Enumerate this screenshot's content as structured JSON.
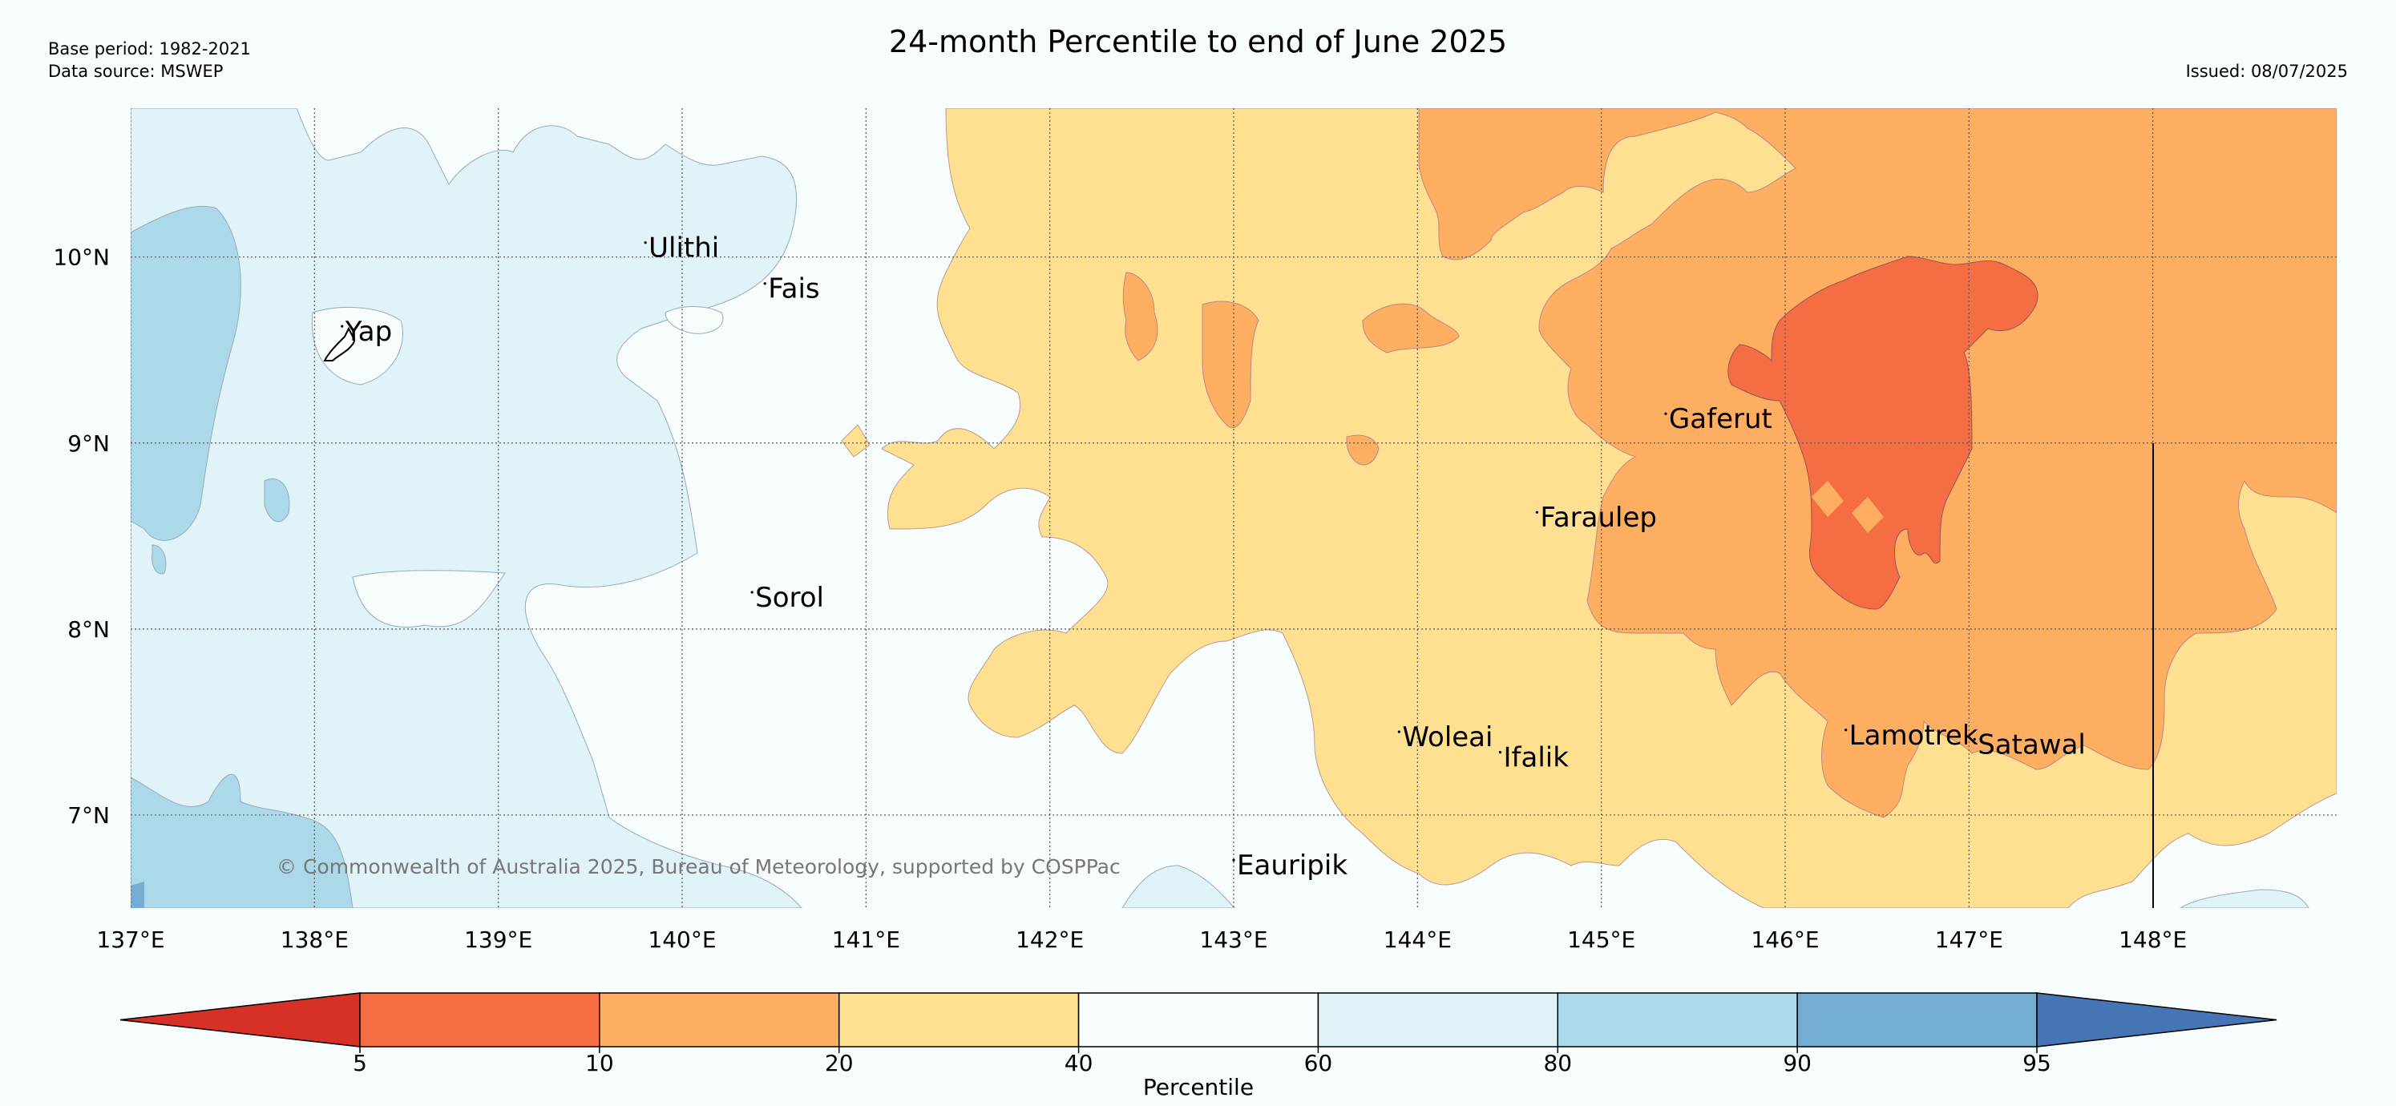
{
  "header": {
    "title": "24-month Percentile to end of June 2025",
    "base_period": "Base period: 1982-2021",
    "data_source": "Data source: MSWEP",
    "issued": "Issued: 08/07/2025"
  },
  "map": {
    "lon_range": [
      137,
      149
    ],
    "lat_range": [
      6.5,
      10.8
    ],
    "x_ticks": [
      {
        "value": 137,
        "label": "137°E"
      },
      {
        "value": 138,
        "label": "138°E"
      },
      {
        "value": 139,
        "label": "139°E"
      },
      {
        "value": 140,
        "label": "140°E"
      },
      {
        "value": 141,
        "label": "141°E"
      },
      {
        "value": 142,
        "label": "142°E"
      },
      {
        "value": 143,
        "label": "143°E"
      },
      {
        "value": 144,
        "label": "144°E"
      },
      {
        "value": 145,
        "label": "145°E"
      },
      {
        "value": 146,
        "label": "146°E"
      },
      {
        "value": 147,
        "label": "147°E"
      },
      {
        "value": 148,
        "label": "148°E"
      }
    ],
    "y_ticks": [
      {
        "value": 10,
        "label": "10°N"
      },
      {
        "value": 9,
        "label": "9°N"
      },
      {
        "value": 8,
        "label": "8°N"
      },
      {
        "value": 7,
        "label": "7°N"
      }
    ],
    "places": [
      {
        "name": "Ulithi",
        "lon": 139.8,
        "lat": 10.0
      },
      {
        "name": "Fais",
        "lon": 140.45,
        "lat": 9.78
      },
      {
        "name": "Yap",
        "lon": 138.15,
        "lat": 9.55
      },
      {
        "name": "Gaferut",
        "lon": 145.35,
        "lat": 9.08
      },
      {
        "name": "Faraulep",
        "lon": 144.65,
        "lat": 8.55
      },
      {
        "name": "Sorol",
        "lon": 140.38,
        "lat": 8.12
      },
      {
        "name": "Woleai",
        "lon": 143.9,
        "lat": 7.37
      },
      {
        "name": "Ifalik",
        "lon": 144.45,
        "lat": 7.26
      },
      {
        "name": "Lamotrek",
        "lon": 146.33,
        "lat": 7.38
      },
      {
        "name": "Satawal",
        "lon": 147.03,
        "lat": 7.33
      },
      {
        "name": "Eauripik",
        "lon": 143.0,
        "lat": 6.68
      }
    ],
    "copyright": "© Commonwealth of Australia 2025, Bureau of Meteorology, supported by COSPPac"
  },
  "colorbar": {
    "label": "Percentile",
    "boundaries": [
      "5",
      "10",
      "20",
      "40",
      "60",
      "80",
      "90",
      "95"
    ],
    "colors": [
      "#d73027",
      "#f46d43",
      "#fdae61",
      "#fee090",
      "#f7fcfd",
      "#e0f3f8",
      "#abd9e9",
      "#74add1",
      "#4575b4"
    ]
  },
  "colors": {
    "below_10": "#f46d43",
    "p10_20": "#fdae61",
    "p20_40": "#fee090",
    "p40_60": "#f7fcfd",
    "p60_80": "#e0f3f8",
    "p80_90": "#abd9e9",
    "p90_95": "#74add1"
  }
}
